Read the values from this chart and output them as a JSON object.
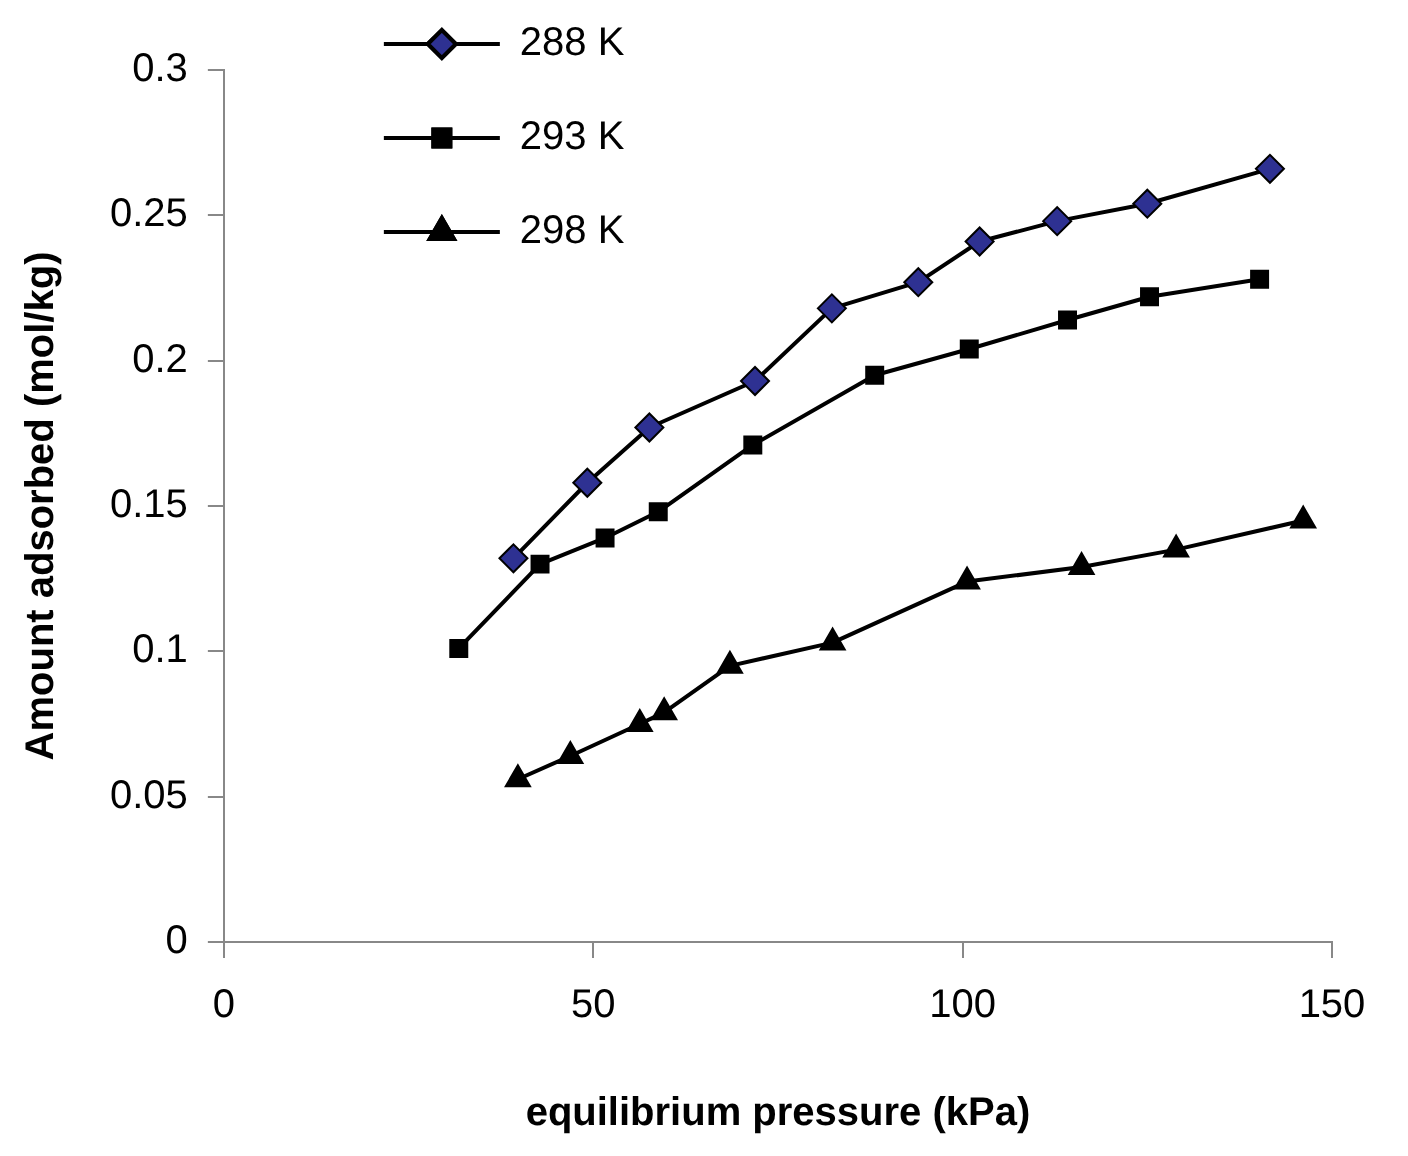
{
  "chart_data": {
    "type": "line",
    "xlabel": "equilibrium pressure (kPa)",
    "ylabel": "Amount adsorbed (mol/kg)",
    "xlim": [
      0,
      150
    ],
    "xticks": [
      0,
      50,
      100,
      150
    ],
    "ylim": [
      0,
      0.3
    ],
    "yticks": [
      0,
      0.05,
      0.1,
      0.15,
      0.2,
      0.25,
      0.3
    ],
    "grid": false,
    "legend": "top left",
    "line_style": "solid",
    "series": [
      {
        "name": "288 K",
        "color": "#2e3192",
        "marker": "diamond",
        "x": [
          39.2,
          49.2,
          57.6,
          71.9,
          82.3,
          94.0,
          102.3,
          112.8,
          125.0,
          141.6
        ],
        "values": [
          0.132,
          0.158,
          0.177,
          0.193,
          0.218,
          0.227,
          0.241,
          0.248,
          0.254,
          0.266
        ]
      },
      {
        "name": "293 K",
        "color": "#000000",
        "marker": "square",
        "x": [
          31.8,
          42.8,
          51.6,
          58.8,
          71.6,
          88.1,
          100.9,
          114.2,
          125.3,
          140.2
        ],
        "values": [
          0.101,
          0.13,
          0.139,
          0.148,
          0.171,
          0.195,
          0.204,
          0.214,
          0.222,
          0.228
        ]
      },
      {
        "name": "298 K",
        "color": "#000000",
        "marker": "triangle",
        "x": [
          39.8,
          46.9,
          56.3,
          59.6,
          68.5,
          82.4,
          100.6,
          116.1,
          128.9,
          146.1
        ],
        "values": [
          0.056,
          0.064,
          0.075,
          0.079,
          0.095,
          0.103,
          0.124,
          0.129,
          0.135,
          0.145
        ]
      }
    ]
  }
}
